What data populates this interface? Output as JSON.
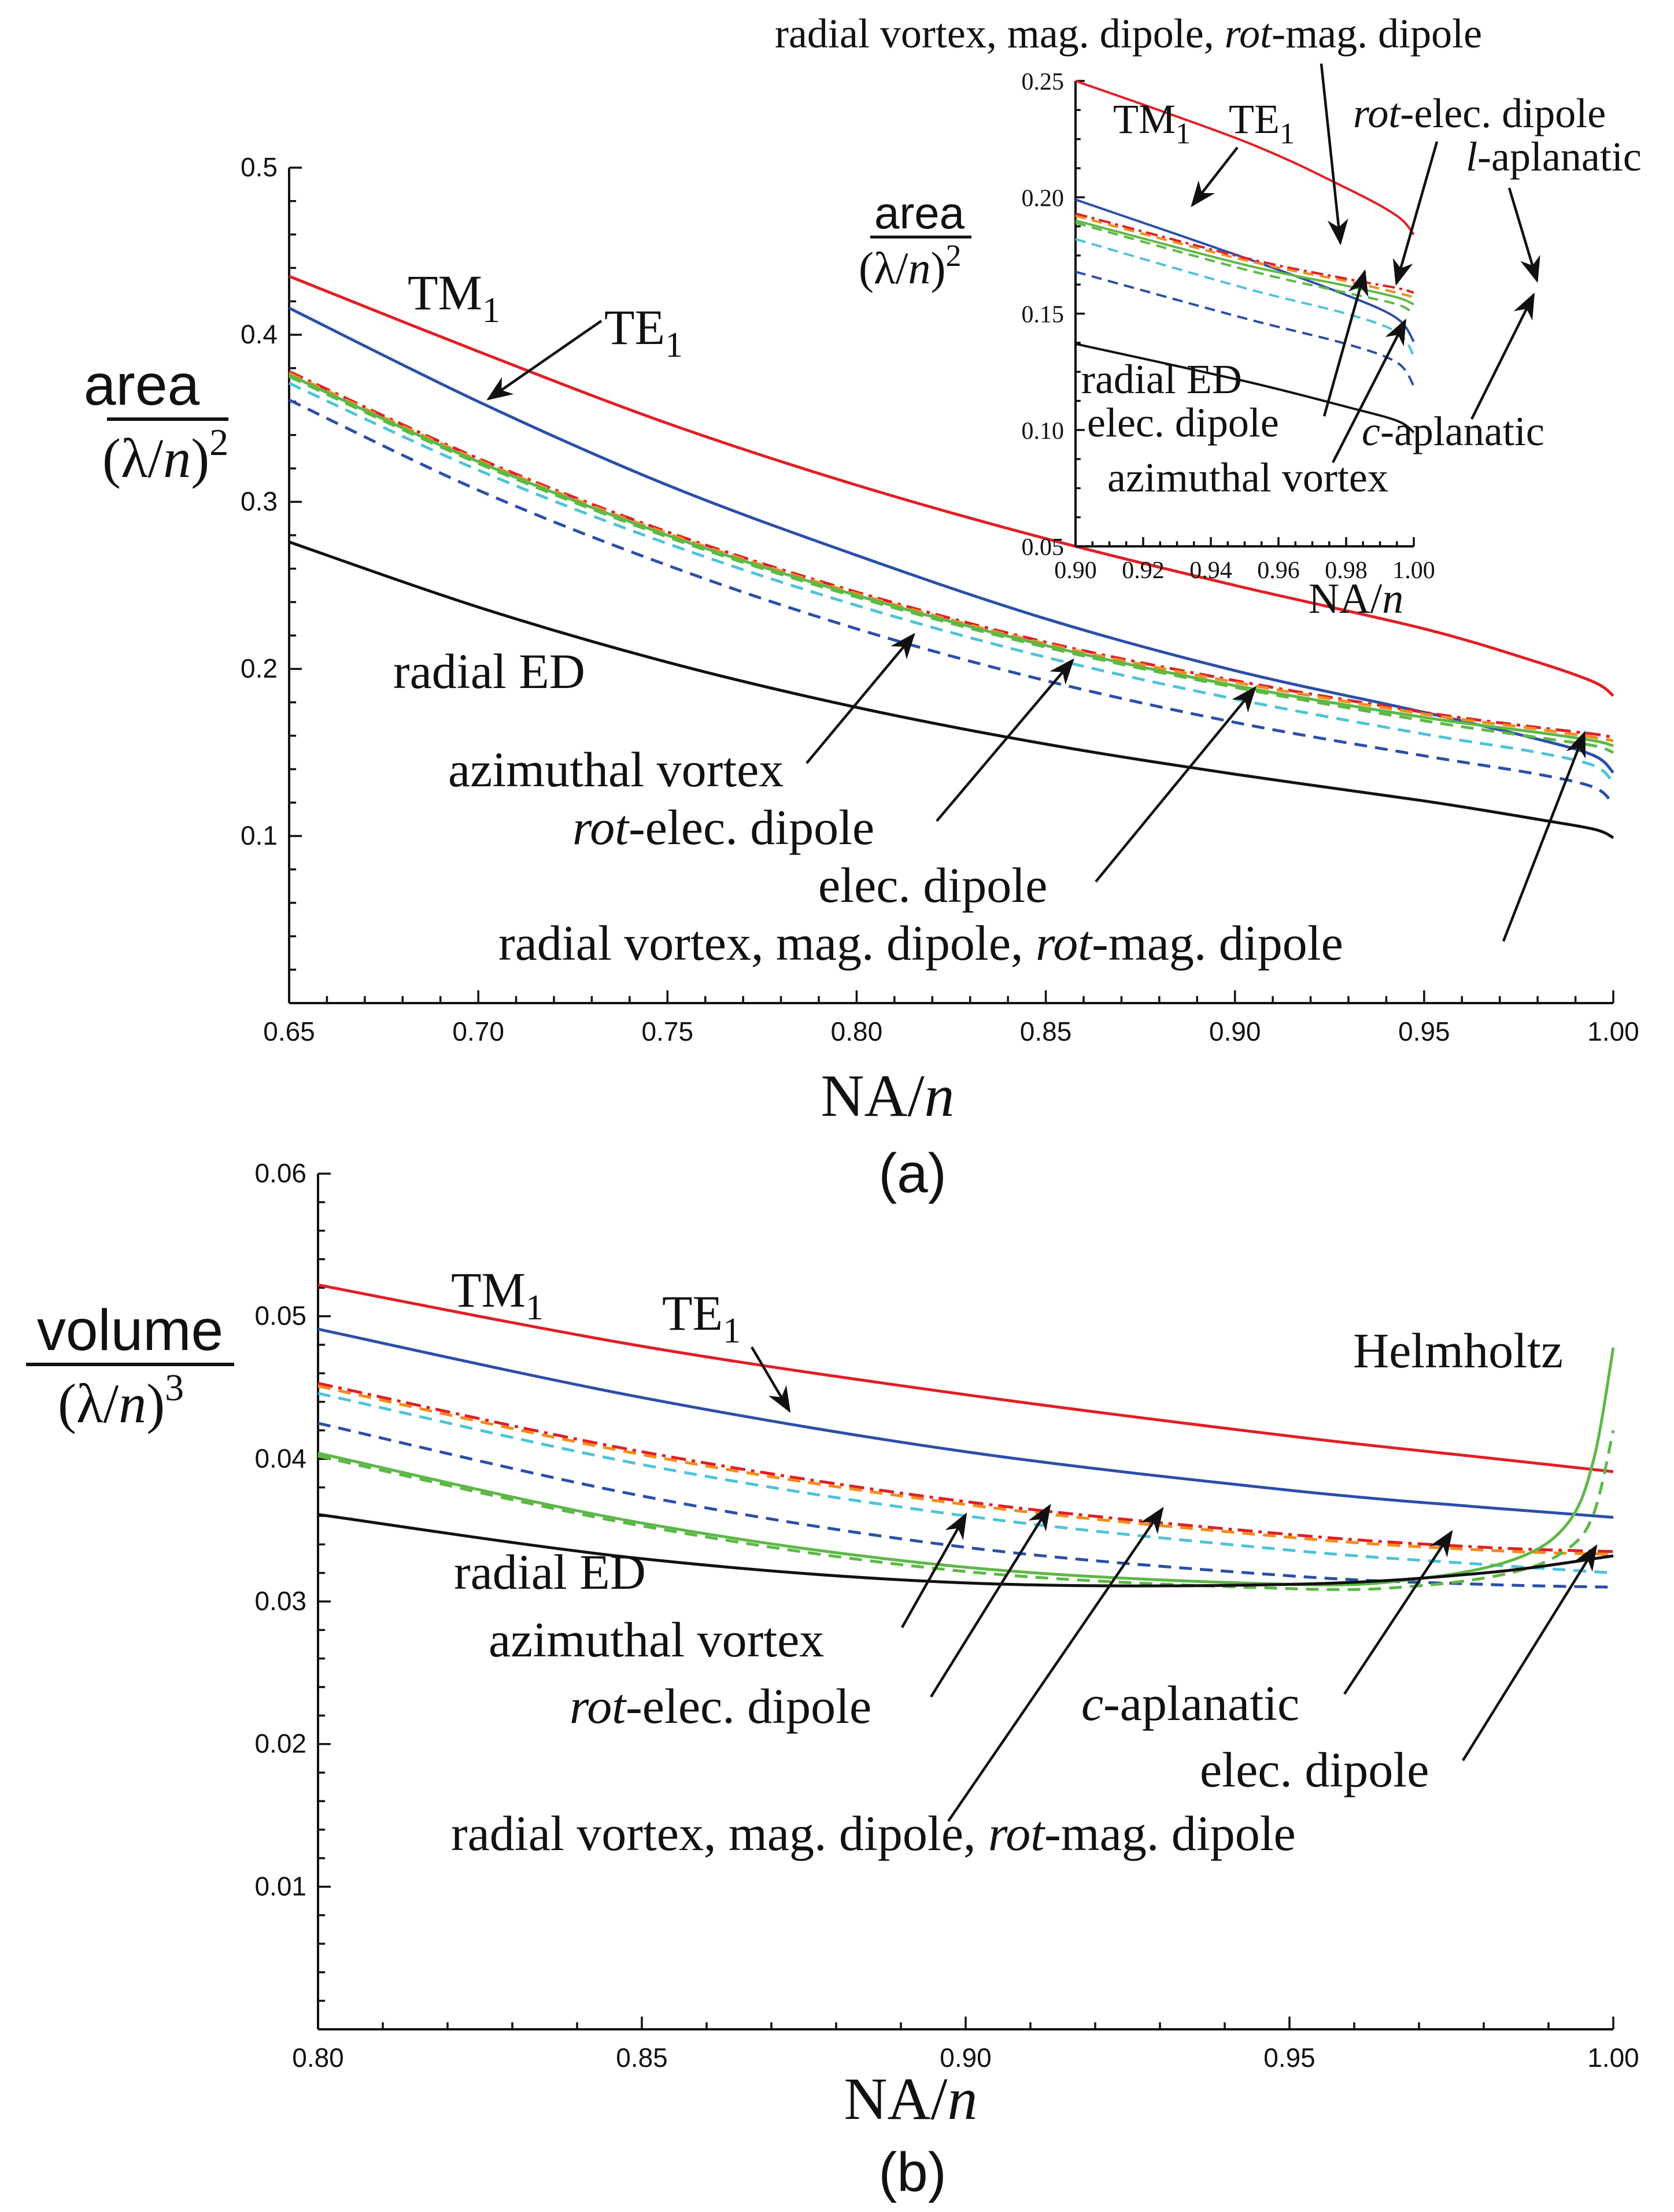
{
  "figure": {
    "panel_a_label": "(a)",
    "panel_b_label": "(b)"
  },
  "chart_data": [
    {
      "id": "a",
      "type": "line",
      "xlabel": "NA/n",
      "ylabel": "area/(λ/n)²",
      "xlim": [
        0.65,
        1.0
      ],
      "ylim": [
        0.0,
        0.5
      ],
      "xticks": [
        "0.65",
        "0.70",
        "0.75",
        "0.80",
        "0.85",
        "0.90",
        "0.95",
        "1.00"
      ],
      "yticks": [
        "0.1",
        "0.2",
        "0.3",
        "0.4",
        "0.5"
      ],
      "series": [
        {
          "name": "TM1",
          "color": "#e01f26",
          "dash": "solid",
          "x": [
            0.65,
            0.7,
            0.75,
            0.8,
            0.85,
            0.9,
            0.95,
            0.98,
            0.995,
            1.0
          ],
          "y": [
            0.435,
            0.39,
            0.347,
            0.31,
            0.278,
            0.25,
            0.224,
            0.204,
            0.192,
            0.184
          ]
        },
        {
          "name": "TE1",
          "color": "#2b4fa8",
          "dash": "solid",
          "x": [
            0.65,
            0.7,
            0.75,
            0.8,
            0.85,
            0.9,
            0.95,
            0.98,
            0.995,
            1.0
          ],
          "y": [
            0.416,
            0.36,
            0.31,
            0.268,
            0.23,
            0.199,
            0.174,
            0.158,
            0.148,
            0.138
          ]
        },
        {
          "name": "radial vortex, mag. dipole, rot-mag. dipole",
          "color": "#e01f26",
          "dash": "dashdot",
          "x": [
            0.65,
            0.7,
            0.75,
            0.8,
            0.85,
            0.9,
            0.95,
            0.98,
            0.995,
            1.0
          ],
          "y": [
            0.378,
            0.326,
            0.282,
            0.246,
            0.216,
            0.193,
            0.174,
            0.165,
            0.161,
            0.159
          ]
        },
        {
          "name": "l-aplanatic",
          "color": "#f28c1e",
          "dash": "dashed",
          "x": [
            0.65,
            0.7,
            0.75,
            0.8,
            0.85,
            0.9,
            0.95,
            0.98,
            0.995,
            1.0
          ],
          "y": [
            0.377,
            0.325,
            0.281,
            0.245,
            0.215,
            0.192,
            0.173,
            0.164,
            0.159,
            0.157
          ]
        },
        {
          "name": "elec. dipole",
          "color": "#5db847",
          "dash": "solid",
          "x": [
            0.65,
            0.7,
            0.75,
            0.8,
            0.85,
            0.9,
            0.95,
            0.98,
            0.995,
            1.0
          ],
          "y": [
            0.376,
            0.324,
            0.28,
            0.244,
            0.214,
            0.19,
            0.171,
            0.162,
            0.157,
            0.154
          ]
        },
        {
          "name": "c-aplanatic",
          "color": "#5db847",
          "dash": "dashed",
          "x": [
            0.65,
            0.7,
            0.75,
            0.8,
            0.85,
            0.9,
            0.95,
            0.98,
            0.995,
            1.0
          ],
          "y": [
            0.375,
            0.323,
            0.279,
            0.243,
            0.213,
            0.189,
            0.169,
            0.159,
            0.154,
            0.15
          ]
        },
        {
          "name": "rot-elec. dipole",
          "color": "#4fc3d9",
          "dash": "dashed",
          "x": [
            0.65,
            0.7,
            0.75,
            0.8,
            0.85,
            0.9,
            0.95,
            0.98,
            0.995,
            1.0
          ],
          "y": [
            0.371,
            0.319,
            0.275,
            0.238,
            0.207,
            0.182,
            0.161,
            0.15,
            0.142,
            0.132
          ]
        },
        {
          "name": "azimuthal vortex",
          "color": "#2b4fa8",
          "dash": "dashed",
          "x": [
            0.65,
            0.7,
            0.75,
            0.8,
            0.85,
            0.9,
            0.95,
            0.98,
            0.995,
            1.0
          ],
          "y": [
            0.361,
            0.307,
            0.262,
            0.224,
            0.193,
            0.168,
            0.148,
            0.137,
            0.129,
            0.119
          ]
        },
        {
          "name": "radial ED",
          "color": "#111111",
          "dash": "solid",
          "x": [
            0.65,
            0.7,
            0.75,
            0.8,
            0.85,
            0.9,
            0.95,
            0.98,
            0.995,
            1.0
          ],
          "y": [
            0.276,
            0.237,
            0.204,
            0.177,
            0.155,
            0.137,
            0.121,
            0.11,
            0.104,
            0.099
          ]
        }
      ],
      "annotations": {
        "tm1": "TM",
        "tm1_sub": "1",
        "te1": "TE",
        "te1_sub": "1",
        "radial_ed": "radial ED",
        "azimuthal_vortex": "azimuthal vortex",
        "rot_elec_dipole_it": "rot",
        "rot_elec_dipole_rest": "-elec. dipole",
        "elec_dipole": "elec. dipole",
        "radial_vortex_prefix": "radial vortex, mag. dipole, ",
        "radial_vortex_it": "rot",
        "radial_vortex_rest": "-mag. dipole"
      },
      "ylabel_parts": {
        "top": "area",
        "bottom_open": "(λ/",
        "bottom_it": "n",
        "bottom_close": ")",
        "exp": "2"
      },
      "xlabel_parts": {
        "main": "NA/",
        "it": "n"
      },
      "inset": {
        "xlim": [
          0.9,
          1.0
        ],
        "ylim": [
          0.05,
          0.25
        ],
        "xticks": [
          "0.90",
          "0.92",
          "0.94",
          "0.96",
          "0.98",
          "1.00"
        ],
        "yticks": [
          "0.05",
          "0.10",
          "0.15",
          "0.20",
          "0.25"
        ],
        "xlabel": "NA/n",
        "ylabel": "area/(λ/n)²",
        "annotations": {
          "top": "radial vortex, mag. dipole, rot-mag. dipole",
          "top_prefix": "radial vortex, mag. dipole, ",
          "top_it": "rot",
          "top_rest": "-mag. dipole",
          "tm1": "TM",
          "tm1_sub": "1",
          "te1": "TE",
          "te1_sub": "1",
          "rot_elec_it": "rot",
          "rot_elec_rest": "-elec. dipole",
          "l_aplanatic_it": "l",
          "l_aplanatic_rest": "-aplanatic",
          "radial_ed": "radial ED",
          "elec_dipole": "elec. dipole",
          "c_aplanatic_it": "c",
          "c_aplanatic_rest": "-aplanatic",
          "azimuthal_vortex": "azimuthal vortex"
        }
      }
    },
    {
      "id": "b",
      "type": "line",
      "xlabel": "NA/n",
      "ylabel": "volume/(λ/n)³",
      "xlim": [
        0.8,
        1.0
      ],
      "ylim": [
        0.0,
        0.06
      ],
      "xticks": [
        "0.80",
        "0.85",
        "0.90",
        "0.95",
        "1.00"
      ],
      "yticks": [
        "0.01",
        "0.02",
        "0.03",
        "0.04",
        "0.05",
        "0.06"
      ],
      "series": [
        {
          "name": "TM1",
          "color": "#e01f26",
          "dash": "solid",
          "x": [
            0.8,
            0.85,
            0.9,
            0.95,
            0.98,
            1.0
          ],
          "y": [
            0.0522,
            0.0479,
            0.0445,
            0.0416,
            0.0401,
            0.0391
          ]
        },
        {
          "name": "TE1",
          "color": "#2b4fa8",
          "dash": "solid",
          "x": [
            0.8,
            0.85,
            0.9,
            0.95,
            0.98,
            1.0
          ],
          "y": [
            0.0491,
            0.0443,
            0.0405,
            0.0378,
            0.0366,
            0.0359
          ]
        },
        {
          "name": "radial vortex, mag. dipole, rot-mag. dipole",
          "color": "#e01f26",
          "dash": "dashdot",
          "x": [
            0.8,
            0.85,
            0.9,
            0.95,
            0.98,
            1.0
          ],
          "y": [
            0.0453,
            0.0405,
            0.037,
            0.0347,
            0.0338,
            0.0335
          ]
        },
        {
          "name": "l-aplanatic",
          "color": "#f28c1e",
          "dash": "dashed",
          "x": [
            0.8,
            0.85,
            0.9,
            0.95,
            0.98,
            1.0
          ],
          "y": [
            0.0451,
            0.0403,
            0.0368,
            0.0345,
            0.0336,
            0.0333
          ]
        },
        {
          "name": "rot-elec. dipole",
          "color": "#4fc3d9",
          "dash": "dashed",
          "x": [
            0.8,
            0.85,
            0.9,
            0.95,
            0.98,
            1.0
          ],
          "y": [
            0.0446,
            0.0396,
            0.036,
            0.0336,
            0.0326,
            0.032
          ]
        },
        {
          "name": "azimuthal vortex",
          "color": "#2b4fa8",
          "dash": "dashed",
          "x": [
            0.8,
            0.85,
            0.9,
            0.95,
            0.98,
            1.0
          ],
          "y": [
            0.0425,
            0.0374,
            0.0338,
            0.0318,
            0.0312,
            0.031
          ]
        },
        {
          "name": "elec. dipole",
          "color": "#5db847",
          "dash": "solid",
          "x": [
            0.8,
            0.85,
            0.9,
            0.95,
            0.97,
            0.985,
            0.993,
            0.997,
            1.0
          ],
          "y": [
            0.0404,
            0.0355,
            0.0324,
            0.0312,
            0.0316,
            0.033,
            0.0355,
            0.04,
            0.0478
          ]
        },
        {
          "name": "c-aplanatic",
          "color": "#5db847",
          "dash": "dashed",
          "x": [
            0.8,
            0.85,
            0.9,
            0.95,
            0.97,
            0.985,
            0.993,
            0.997,
            1.0
          ],
          "y": [
            0.0402,
            0.0353,
            0.0321,
            0.0309,
            0.0311,
            0.0321,
            0.0337,
            0.0362,
            0.042
          ]
        },
        {
          "name": "radial ED",
          "color": "#111111",
          "dash": "solid",
          "x": [
            0.8,
            0.85,
            0.9,
            0.95,
            0.98,
            1.0
          ],
          "y": [
            0.0361,
            0.033,
            0.0313,
            0.0312,
            0.032,
            0.0332
          ]
        }
      ],
      "annotations": {
        "tm1": "TM",
        "tm1_sub": "1",
        "te1": "TE",
        "te1_sub": "1",
        "helmholtz": "Helmholtz",
        "radial_ed": "radial ED",
        "azimuthal_vortex": "azimuthal vortex",
        "rot_elec_it": "rot",
        "rot_elec_rest": "-elec. dipole",
        "c_aplanatic_it": "c",
        "c_aplanatic_rest": "-aplanatic",
        "elec_dipole": "elec. dipole",
        "radial_vortex_prefix": "radial vortex, mag. dipole, ",
        "radial_vortex_it": "rot",
        "radial_vortex_rest": "-mag. dipole"
      },
      "ylabel_parts": {
        "top": "volume",
        "bottom_open": "(λ/",
        "bottom_it": "n",
        "bottom_close": ")",
        "exp": "3"
      },
      "xlabel_parts": {
        "main": "NA/",
        "it": "n"
      }
    }
  ]
}
